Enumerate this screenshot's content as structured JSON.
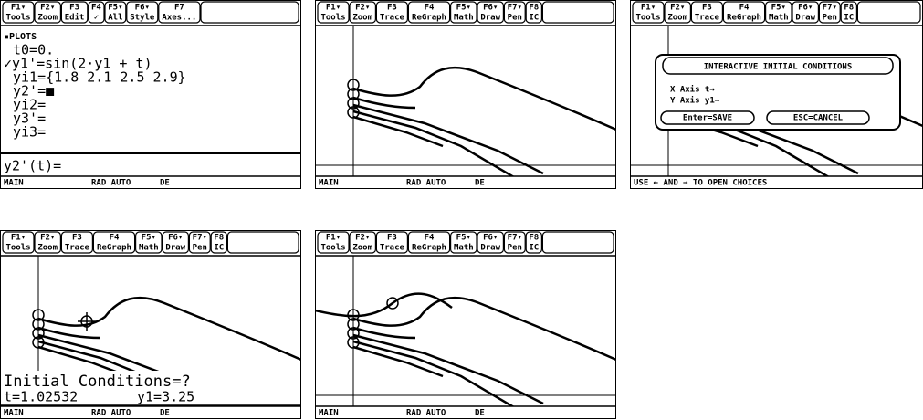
{
  "screens": [
    {
      "toolbar": [
        {
          "key": "F1▾",
          "label": "Tools"
        },
        {
          "key": "F2▾",
          "label": "Zoom"
        },
        {
          "key": "F3",
          "label": "Edit"
        },
        {
          "key": "F4",
          "label": "✓"
        },
        {
          "key": "F5▾",
          "label": "All"
        },
        {
          "key": "F6▾",
          "label": "Style"
        },
        {
          "key": "F7",
          "label": "Axes..."
        }
      ],
      "lines": [
        "▪PLOTS",
        "t0=0.",
        "✓y1'=sin(2·y1 + t)",
        "yi1={1.8  2.1  2.5  2.9}",
        "y2'=■",
        "yi2=",
        "y3'=",
        "yi3="
      ],
      "entry": "y2'(t)=",
      "status": [
        "MAIN",
        "RAD AUTO",
        "DE"
      ]
    },
    {
      "toolbar": [
        {
          "key": "F1▾",
          "label": "Tools"
        },
        {
          "key": "F2▾",
          "label": "Zoom"
        },
        {
          "key": "F3",
          "label": "Trace"
        },
        {
          "key": "F4",
          "label": "ReGraph"
        },
        {
          "key": "F5▾",
          "label": "Math"
        },
        {
          "key": "F6▾",
          "label": "Draw"
        },
        {
          "key": "F7▾",
          "label": "Pen"
        },
        {
          "key": "F8",
          "label": "IC"
        }
      ],
      "status": [
        "MAIN",
        "RAD AUTO",
        "DE"
      ]
    },
    {
      "toolbar": [
        {
          "key": "F1▾",
          "label": "Tools"
        },
        {
          "key": "F2▾",
          "label": "Zoom"
        },
        {
          "key": "F3",
          "label": "Trace"
        },
        {
          "key": "F4",
          "label": "ReGraph"
        },
        {
          "key": "F5▾",
          "label": "Math"
        },
        {
          "key": "F6▾",
          "label": "Draw"
        },
        {
          "key": "F7▾",
          "label": "Pen"
        },
        {
          "key": "F8",
          "label": "IC"
        }
      ],
      "dialog": {
        "title": "INTERACTIVE INITIAL CONDITIONS",
        "fields": [
          "X Axis t→",
          "Y Axis y1→"
        ],
        "buttons": [
          "Enter=SAVE",
          "ESC=CANCEL"
        ]
      },
      "status": [
        "USE ← AND → TO OPEN CHOICES"
      ]
    },
    {
      "toolbar": [
        {
          "key": "F1▾",
          "label": "Tools"
        },
        {
          "key": "F2▾",
          "label": "Zoom"
        },
        {
          "key": "F3",
          "label": "Trace"
        },
        {
          "key": "F4",
          "label": "ReGraph"
        },
        {
          "key": "F5▾",
          "label": "Math"
        },
        {
          "key": "F6▾",
          "label": "Draw"
        },
        {
          "key": "F7▾",
          "label": "Pen"
        },
        {
          "key": "F8",
          "label": "IC"
        }
      ],
      "prompt": {
        "title": "Initial Conditions=?",
        "t": "t=1.02532",
        "y": "y1=3.25"
      },
      "status": [
        "MAIN",
        "RAD AUTO",
        "DE"
      ]
    },
    {
      "toolbar": [
        {
          "key": "F1▾",
          "label": "Tools"
        },
        {
          "key": "F2▾",
          "label": "Zoom"
        },
        {
          "key": "F3",
          "label": "Trace"
        },
        {
          "key": "F4",
          "label": "ReGraph"
        },
        {
          "key": "F5▾",
          "label": "Math"
        },
        {
          "key": "F6▾",
          "label": "Draw"
        },
        {
          "key": "F7▾",
          "label": "Pen"
        },
        {
          "key": "F8",
          "label": "IC"
        }
      ],
      "status": [
        "MAIN",
        "RAD AUTO",
        "DE"
      ]
    }
  ]
}
